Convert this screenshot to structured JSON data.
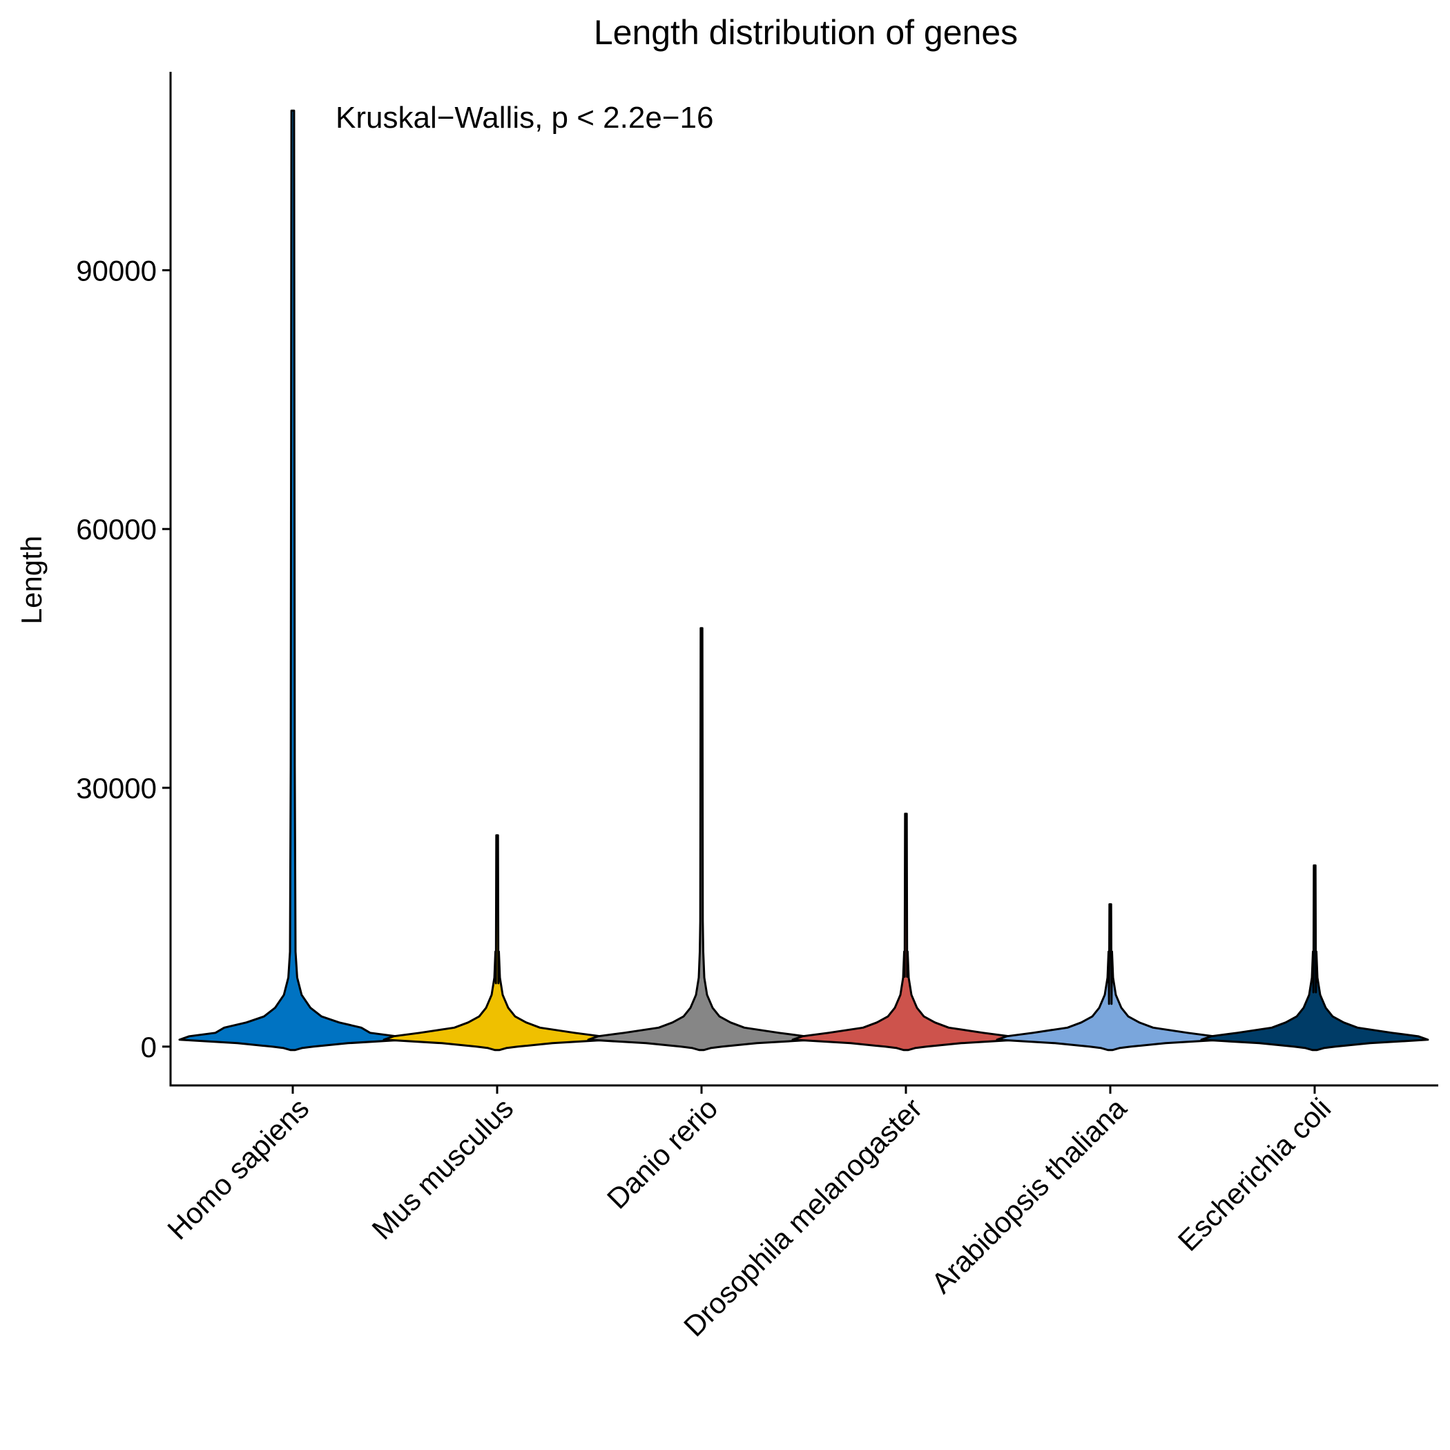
{
  "chart_data": {
    "type": "violin",
    "title": "Length distribution of genes",
    "xlabel": "",
    "ylabel": "Length",
    "ylim": [
      -4500,
      113000
    ],
    "yticks": [
      0,
      30000,
      60000,
      90000
    ],
    "ytick_labels": [
      "0",
      "30000",
      "60000",
      "90000"
    ],
    "annotation": "Kruskal−Wallis, p < 2.2e−16",
    "grid": false,
    "legend": "none",
    "series": [
      {
        "category": "Homo sapiens",
        "color": "#0073C2",
        "min": 0,
        "max": 108500,
        "median": 1200
      },
      {
        "category": "Mus musculus",
        "color": "#EFC000",
        "min": 0,
        "max": 24500,
        "median": 1100
      },
      {
        "category": "Danio rerio",
        "color": "#868686",
        "min": 0,
        "max": 48500,
        "median": 1000
      },
      {
        "category": "Drosophila melanogaster",
        "color": "#CD534C",
        "min": 0,
        "max": 27000,
        "median": 800
      },
      {
        "category": "Arabidopsis thaliana",
        "color": "#7AA6DC",
        "min": 0,
        "max": 16500,
        "median": 1100
      },
      {
        "category": "Escherichia coli",
        "color": "#003C67",
        "min": 0,
        "max": 21000,
        "median": 900
      }
    ]
  }
}
